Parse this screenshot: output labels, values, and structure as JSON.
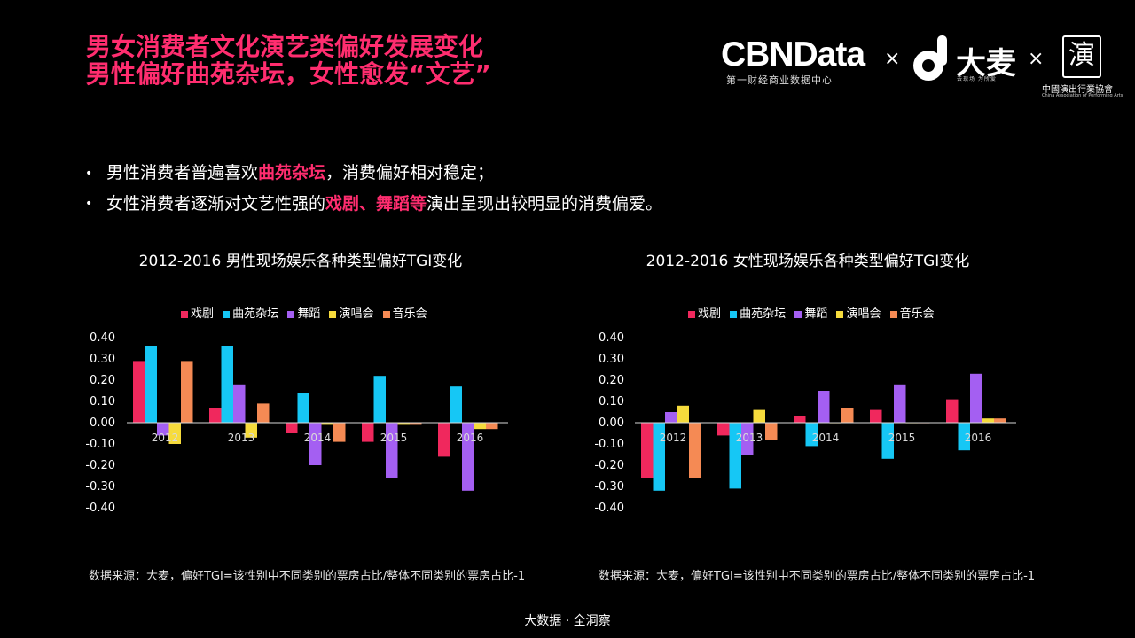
{
  "header": {
    "title_line1": "男女消费者文化演艺类偏好发展变化",
    "title_line2": "男性偏好曲苑杂坛，女性愈发“文艺”"
  },
  "logos": {
    "cbn_text": "CBNData",
    "cbn_sub": "第一财经商业数据中心",
    "times_1": "×",
    "damai_text": "大麦",
    "damai_sub": "去现场 为所爱",
    "times_2": "×",
    "capa_glyph": "演",
    "capa_text": "中國演出行業協會",
    "capa_sub": "China Association of Performing Arts"
  },
  "bullets": [
    {
      "pre": "男性消费者普遍喜欢",
      "hl": "曲苑杂坛",
      "post": "，消费偏好相对稳定；"
    },
    {
      "pre": "女性消费者逐渐对文艺性强的",
      "hl": "戏剧、舞蹈等",
      "post": "演出呈现出较明显的消费偏爱。"
    }
  ],
  "colors": {
    "accent": "#ff2d6f"
  },
  "chart_data": [
    {
      "type": "bar",
      "title": "2012-2016 男性现场娱乐各种类型偏好TGI变化",
      "categories": [
        "2012",
        "2013",
        "2014",
        "2015",
        "2016"
      ],
      "ylim": [
        -0.4,
        0.4
      ],
      "yticks": [
        "0.40",
        "0.30",
        "0.20",
        "0.10",
        "0.00",
        "-0.10",
        "-0.20",
        "-0.30",
        "-0.40"
      ],
      "grid": false,
      "legend": "top",
      "series": [
        {
          "name": "戏剧",
          "color": "#f0285d",
          "values": [
            0.29,
            0.07,
            -0.05,
            -0.09,
            -0.16
          ]
        },
        {
          "name": "曲苑杂坛",
          "color": "#16c7f5",
          "values": [
            0.36,
            0.36,
            0.14,
            0.22,
            0.17
          ]
        },
        {
          "name": "舞蹈",
          "color": "#a45ff2",
          "values": [
            -0.06,
            0.18,
            -0.2,
            -0.26,
            -0.32
          ]
        },
        {
          "name": "演唱会",
          "color": "#f6db3c",
          "values": [
            -0.1,
            -0.07,
            -0.01,
            -0.01,
            -0.03
          ]
        },
        {
          "name": "音乐会",
          "color": "#f58a54",
          "values": [
            0.29,
            0.09,
            -0.09,
            -0.01,
            -0.03
          ]
        }
      ],
      "source": "数据来源：大麦，偏好TGI=该性别中不同类别的票房占比/整体不同类别的票房占比-1"
    },
    {
      "type": "bar",
      "title": "2012-2016 女性现场娱乐各种类型偏好TGI变化",
      "categories": [
        "2012",
        "2013",
        "2014",
        "2015",
        "2016"
      ],
      "ylim": [
        -0.4,
        0.4
      ],
      "yticks": [
        "0.40",
        "0.30",
        "0.20",
        "0.10",
        "0.00",
        "-0.10",
        "-0.20",
        "-0.30",
        "-0.40"
      ],
      "grid": false,
      "legend": "top",
      "series": [
        {
          "name": "戏剧",
          "color": "#f0285d",
          "values": [
            -0.26,
            -0.06,
            0.03,
            0.06,
            0.11
          ]
        },
        {
          "name": "曲苑杂坛",
          "color": "#16c7f5",
          "values": [
            -0.32,
            -0.31,
            -0.11,
            -0.17,
            -0.13
          ]
        },
        {
          "name": "舞蹈",
          "color": "#a45ff2",
          "values": [
            0.05,
            -0.15,
            0.15,
            0.18,
            0.23
          ]
        },
        {
          "name": "演唱会",
          "color": "#f6db3c",
          "values": [
            0.08,
            0.06,
            0.0,
            0.0,
            0.02
          ]
        },
        {
          "name": "音乐会",
          "color": "#f58a54",
          "values": [
            -0.26,
            -0.08,
            0.07,
            0.0,
            0.02
          ]
        }
      ],
      "source": "数据来源：大麦，偏好TGI=该性别中不同类别的票房占比/整体不同类别的票房占比-1"
    }
  ],
  "footer": "大数据 · 全洞察"
}
